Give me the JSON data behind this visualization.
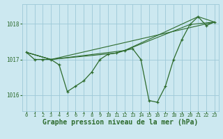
{
  "background_color": "#cce8f0",
  "grid_color": "#9dc8d8",
  "line_color": "#2d6b2d",
  "xlabel": "Graphe pression niveau de la mer (hPa)",
  "xlabel_fontsize": 7,
  "ylabel_ticks": [
    1016,
    1017,
    1018
  ],
  "xlim": [
    -0.5,
    23.5
  ],
  "ylim": [
    1015.55,
    1018.55
  ],
  "xticks": [
    0,
    1,
    2,
    3,
    4,
    5,
    6,
    7,
    8,
    9,
    10,
    11,
    12,
    13,
    14,
    15,
    16,
    17,
    18,
    19,
    20,
    21,
    22,
    23
  ],
  "line1_x": [
    0,
    1,
    2,
    3,
    4,
    5,
    6,
    7,
    8,
    9,
    10,
    11,
    12,
    13,
    14,
    15,
    16,
    17,
    18,
    19,
    20,
    21,
    22,
    23
  ],
  "line1_y": [
    1017.2,
    1017.0,
    1017.0,
    1017.0,
    1016.85,
    1016.1,
    1016.25,
    1016.4,
    1016.65,
    1017.0,
    1017.15,
    1017.18,
    1017.25,
    1017.3,
    1017.0,
    1015.85,
    1015.8,
    1016.25,
    1017.0,
    1017.55,
    1017.98,
    1018.2,
    1017.95,
    1018.05
  ],
  "line2_x": [
    0,
    3,
    23
  ],
  "line2_y": [
    1017.2,
    1017.0,
    1018.05
  ],
  "line3_x": [
    0,
    3,
    12,
    21,
    23
  ],
  "line3_y": [
    1017.2,
    1017.0,
    1017.25,
    1018.2,
    1018.05
  ],
  "line4_x": [
    0,
    3,
    11,
    12,
    20,
    23
  ],
  "line4_y": [
    1017.2,
    1017.0,
    1017.18,
    1017.25,
    1017.98,
    1018.05
  ]
}
